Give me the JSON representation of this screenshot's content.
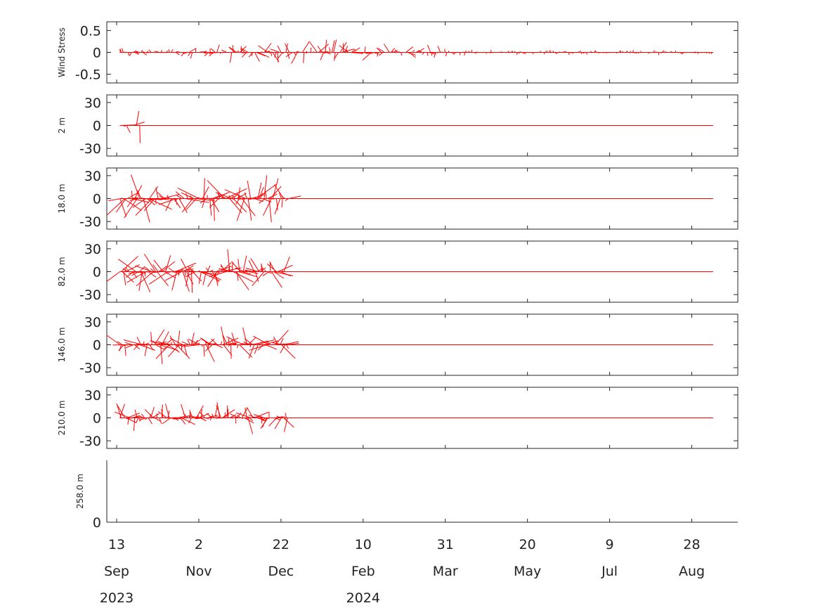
{
  "colors": {
    "line": "#ff0000",
    "axis": "#262626",
    "background": "#ffffff"
  },
  "chart_data": {
    "type": "line",
    "style": "stick vector plot",
    "x_axis": {
      "range": [
        "2023-09-07",
        "2024-09-25"
      ],
      "ticks": [
        {
          "date": "2023-09-13",
          "day": "13",
          "month": "Sep",
          "year": "2023"
        },
        {
          "date": "2023-11-02",
          "day": "2",
          "month": "Nov",
          "year": ""
        },
        {
          "date": "2023-12-22",
          "day": "22",
          "month": "Dec",
          "year": ""
        },
        {
          "date": "2024-02-10",
          "day": "10",
          "month": "Feb",
          "year": "2024"
        },
        {
          "date": "2024-03-31",
          "day": "31",
          "month": "Mar",
          "year": ""
        },
        {
          "date": "2024-05-20",
          "day": "20",
          "month": "May",
          "year": ""
        },
        {
          "date": "2024-07-09",
          "day": "9",
          "month": "Jul",
          "year": ""
        },
        {
          "date": "2024-08-28",
          "day": "28",
          "month": "Aug",
          "year": ""
        }
      ]
    },
    "panels": [
      {
        "ylabel": "Wind Stress",
        "ylim": [
          -0.7,
          0.7
        ],
        "yticks": [
          {
            "v": 0.5,
            "t": "0.5"
          },
          {
            "v": 0,
            "t": "0"
          },
          {
            "v": -0.5,
            "t": "-0.5"
          }
        ],
        "data_range": [
          "2023-09-15",
          "2024-09-10"
        ],
        "baseline_end": "2024-09-10",
        "amplitude": 0.32
      },
      {
        "ylabel": "2 m",
        "ylim": [
          -40,
          40
        ],
        "yticks": [
          {
            "v": 30,
            "t": "30"
          },
          {
            "v": 0,
            "t": "0"
          },
          {
            "v": -30,
            "t": "-30"
          }
        ],
        "data_range": [
          "2023-09-15",
          "2023-09-28"
        ],
        "baseline_end": "2024-09-10",
        "amplitude": 30
      },
      {
        "ylabel": "18.0 m",
        "ylim": [
          -40,
          40
        ],
        "yticks": [
          {
            "v": 30,
            "t": "30"
          },
          {
            "v": 0,
            "t": "0"
          },
          {
            "v": -30,
            "t": "-30"
          }
        ],
        "data_range": [
          "2023-09-15",
          "2023-12-27"
        ],
        "baseline_end": "2024-09-10",
        "amplitude": 34
      },
      {
        "ylabel": "82.0 m",
        "ylim": [
          -40,
          40
        ],
        "yticks": [
          {
            "v": 30,
            "t": "30"
          },
          {
            "v": 0,
            "t": "0"
          },
          {
            "v": -30,
            "t": "-30"
          }
        ],
        "data_range": [
          "2023-09-15",
          "2023-12-24"
        ],
        "baseline_end": "2024-09-10",
        "amplitude": 30
      },
      {
        "ylabel": "146.0 m",
        "ylim": [
          -40,
          40
        ],
        "yticks": [
          {
            "v": 30,
            "t": "30"
          },
          {
            "v": 0,
            "t": "0"
          },
          {
            "v": -30,
            "t": "-30"
          }
        ],
        "data_range": [
          "2023-09-15",
          "2023-12-26"
        ],
        "baseline_end": "2024-09-10",
        "amplitude": 26
      },
      {
        "ylabel": "210.0 m",
        "ylim": [
          -40,
          40
        ],
        "yticks": [
          {
            "v": 30,
            "t": "30"
          },
          {
            "v": 0,
            "t": "0"
          },
          {
            "v": -30,
            "t": "-30"
          }
        ],
        "data_range": [
          "2023-09-15",
          "2023-12-26"
        ],
        "baseline_end": "2024-09-10",
        "amplitude": 22
      },
      {
        "ylabel": "258.0 m",
        "ylim": [
          0,
          40
        ],
        "yticks": [
          {
            "v": 0,
            "t": "0"
          }
        ],
        "data_range": null,
        "baseline_end": null,
        "amplitude": 0
      }
    ]
  }
}
